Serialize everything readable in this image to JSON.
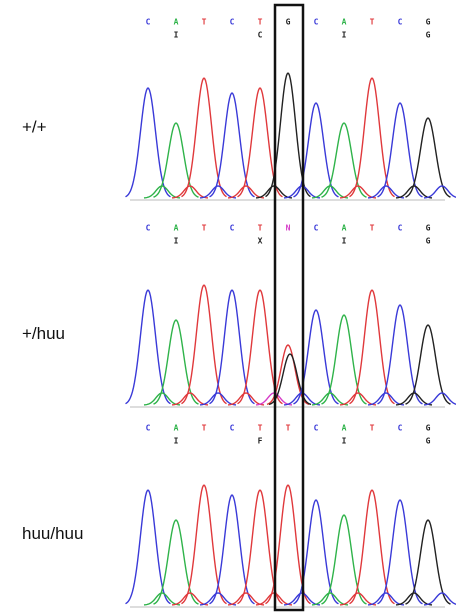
{
  "panels": [
    {
      "genotype": "+/+",
      "bases": [
        "C",
        "A",
        "T",
        "C",
        "T",
        "G",
        "C",
        "A",
        "T",
        "C",
        "G"
      ],
      "amino_acids": [
        "I",
        "C",
        "I",
        "G"
      ]
    },
    {
      "genotype": "+/huu",
      "bases": [
        "C",
        "A",
        "T",
        "C",
        "T",
        "N",
        "C",
        "A",
        "T",
        "C",
        "G"
      ],
      "amino_acids": [
        "I",
        "X",
        "I",
        "G"
      ]
    },
    {
      "genotype": "huu/huu",
      "bases": [
        "C",
        "A",
        "T",
        "C",
        "T",
        "T",
        "C",
        "A",
        "T",
        "C",
        "G"
      ],
      "amino_acids": [
        "I",
        "F",
        "I",
        "G"
      ]
    }
  ]
}
